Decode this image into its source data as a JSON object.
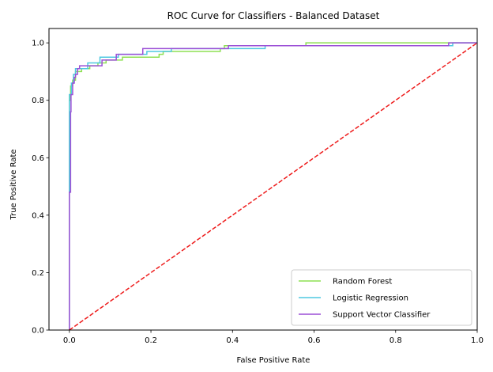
{
  "chart_data": {
    "type": "line",
    "title": "ROC Curve for Classifiers - Balanced Dataset",
    "xlabel": "False Positive Rate",
    "ylabel": "True Positive Rate",
    "xlim": [
      -0.05,
      1.0
    ],
    "ylim": [
      0.0,
      1.05
    ],
    "xticks": [
      0.0,
      0.2,
      0.4,
      0.6,
      0.8,
      1.0
    ],
    "yticks": [
      0.0,
      0.2,
      0.4,
      0.6,
      0.8,
      1.0
    ],
    "xtick_labels": [
      "0.0",
      "0.2",
      "0.4",
      "0.6",
      "0.8",
      "1.0"
    ],
    "ytick_labels": [
      "0.0",
      "0.2",
      "0.4",
      "0.6",
      "0.8",
      "1.0"
    ],
    "grid": false,
    "legend_position": "bottom-right",
    "series": [
      {
        "name": "Random Forest",
        "color": "#8ee053",
        "style": "step",
        "points": [
          [
            0,
            0
          ],
          [
            0,
            0.8
          ],
          [
            0.003,
            0.8
          ],
          [
            0.003,
            0.85
          ],
          [
            0.008,
            0.85
          ],
          [
            0.008,
            0.87
          ],
          [
            0.015,
            0.87
          ],
          [
            0.015,
            0.9
          ],
          [
            0.03,
            0.9
          ],
          [
            0.03,
            0.91
          ],
          [
            0.05,
            0.91
          ],
          [
            0.05,
            0.92
          ],
          [
            0.07,
            0.92
          ],
          [
            0.07,
            0.93
          ],
          [
            0.09,
            0.93
          ],
          [
            0.09,
            0.94
          ],
          [
            0.13,
            0.94
          ],
          [
            0.13,
            0.95
          ],
          [
            0.22,
            0.95
          ],
          [
            0.22,
            0.96
          ],
          [
            0.23,
            0.96
          ],
          [
            0.23,
            0.97
          ],
          [
            0.37,
            0.97
          ],
          [
            0.37,
            0.98
          ],
          [
            0.38,
            0.98
          ],
          [
            0.38,
            0.99
          ],
          [
            0.58,
            0.99
          ],
          [
            0.58,
            1.0
          ],
          [
            1.0,
            1.0
          ]
        ]
      },
      {
        "name": "Logistic Regression",
        "color": "#4fc8e0",
        "style": "step",
        "points": [
          [
            0,
            0
          ],
          [
            0,
            0.82
          ],
          [
            0.005,
            0.82
          ],
          [
            0.005,
            0.86
          ],
          [
            0.01,
            0.86
          ],
          [
            0.01,
            0.89
          ],
          [
            0.015,
            0.89
          ],
          [
            0.015,
            0.91
          ],
          [
            0.045,
            0.91
          ],
          [
            0.045,
            0.93
          ],
          [
            0.075,
            0.93
          ],
          [
            0.075,
            0.95
          ],
          [
            0.12,
            0.95
          ],
          [
            0.12,
            0.96
          ],
          [
            0.19,
            0.96
          ],
          [
            0.19,
            0.97
          ],
          [
            0.25,
            0.97
          ],
          [
            0.25,
            0.98
          ],
          [
            0.48,
            0.98
          ],
          [
            0.48,
            0.99
          ],
          [
            0.94,
            0.99
          ],
          [
            0.94,
            1.0
          ],
          [
            1.0,
            1.0
          ]
        ]
      },
      {
        "name": "Support Vector Classifier",
        "color": "#9b4fd6",
        "style": "step",
        "points": [
          [
            0,
            0
          ],
          [
            0,
            0.48
          ],
          [
            0.003,
            0.48
          ],
          [
            0.003,
            0.76
          ],
          [
            0.004,
            0.76
          ],
          [
            0.004,
            0.82
          ],
          [
            0.008,
            0.82
          ],
          [
            0.008,
            0.86
          ],
          [
            0.012,
            0.86
          ],
          [
            0.012,
            0.88
          ],
          [
            0.015,
            0.88
          ],
          [
            0.015,
            0.89
          ],
          [
            0.02,
            0.89
          ],
          [
            0.02,
            0.91
          ],
          [
            0.025,
            0.91
          ],
          [
            0.025,
            0.92
          ],
          [
            0.08,
            0.92
          ],
          [
            0.08,
            0.94
          ],
          [
            0.115,
            0.94
          ],
          [
            0.115,
            0.96
          ],
          [
            0.18,
            0.96
          ],
          [
            0.18,
            0.98
          ],
          [
            0.39,
            0.98
          ],
          [
            0.39,
            0.99
          ],
          [
            0.93,
            0.99
          ],
          [
            0.93,
            1.0
          ],
          [
            1.0,
            1.0
          ]
        ]
      },
      {
        "name": "",
        "color": "#ee1c1c",
        "style": "dashed",
        "points": [
          [
            0,
            0
          ],
          [
            1,
            1
          ]
        ]
      }
    ]
  }
}
